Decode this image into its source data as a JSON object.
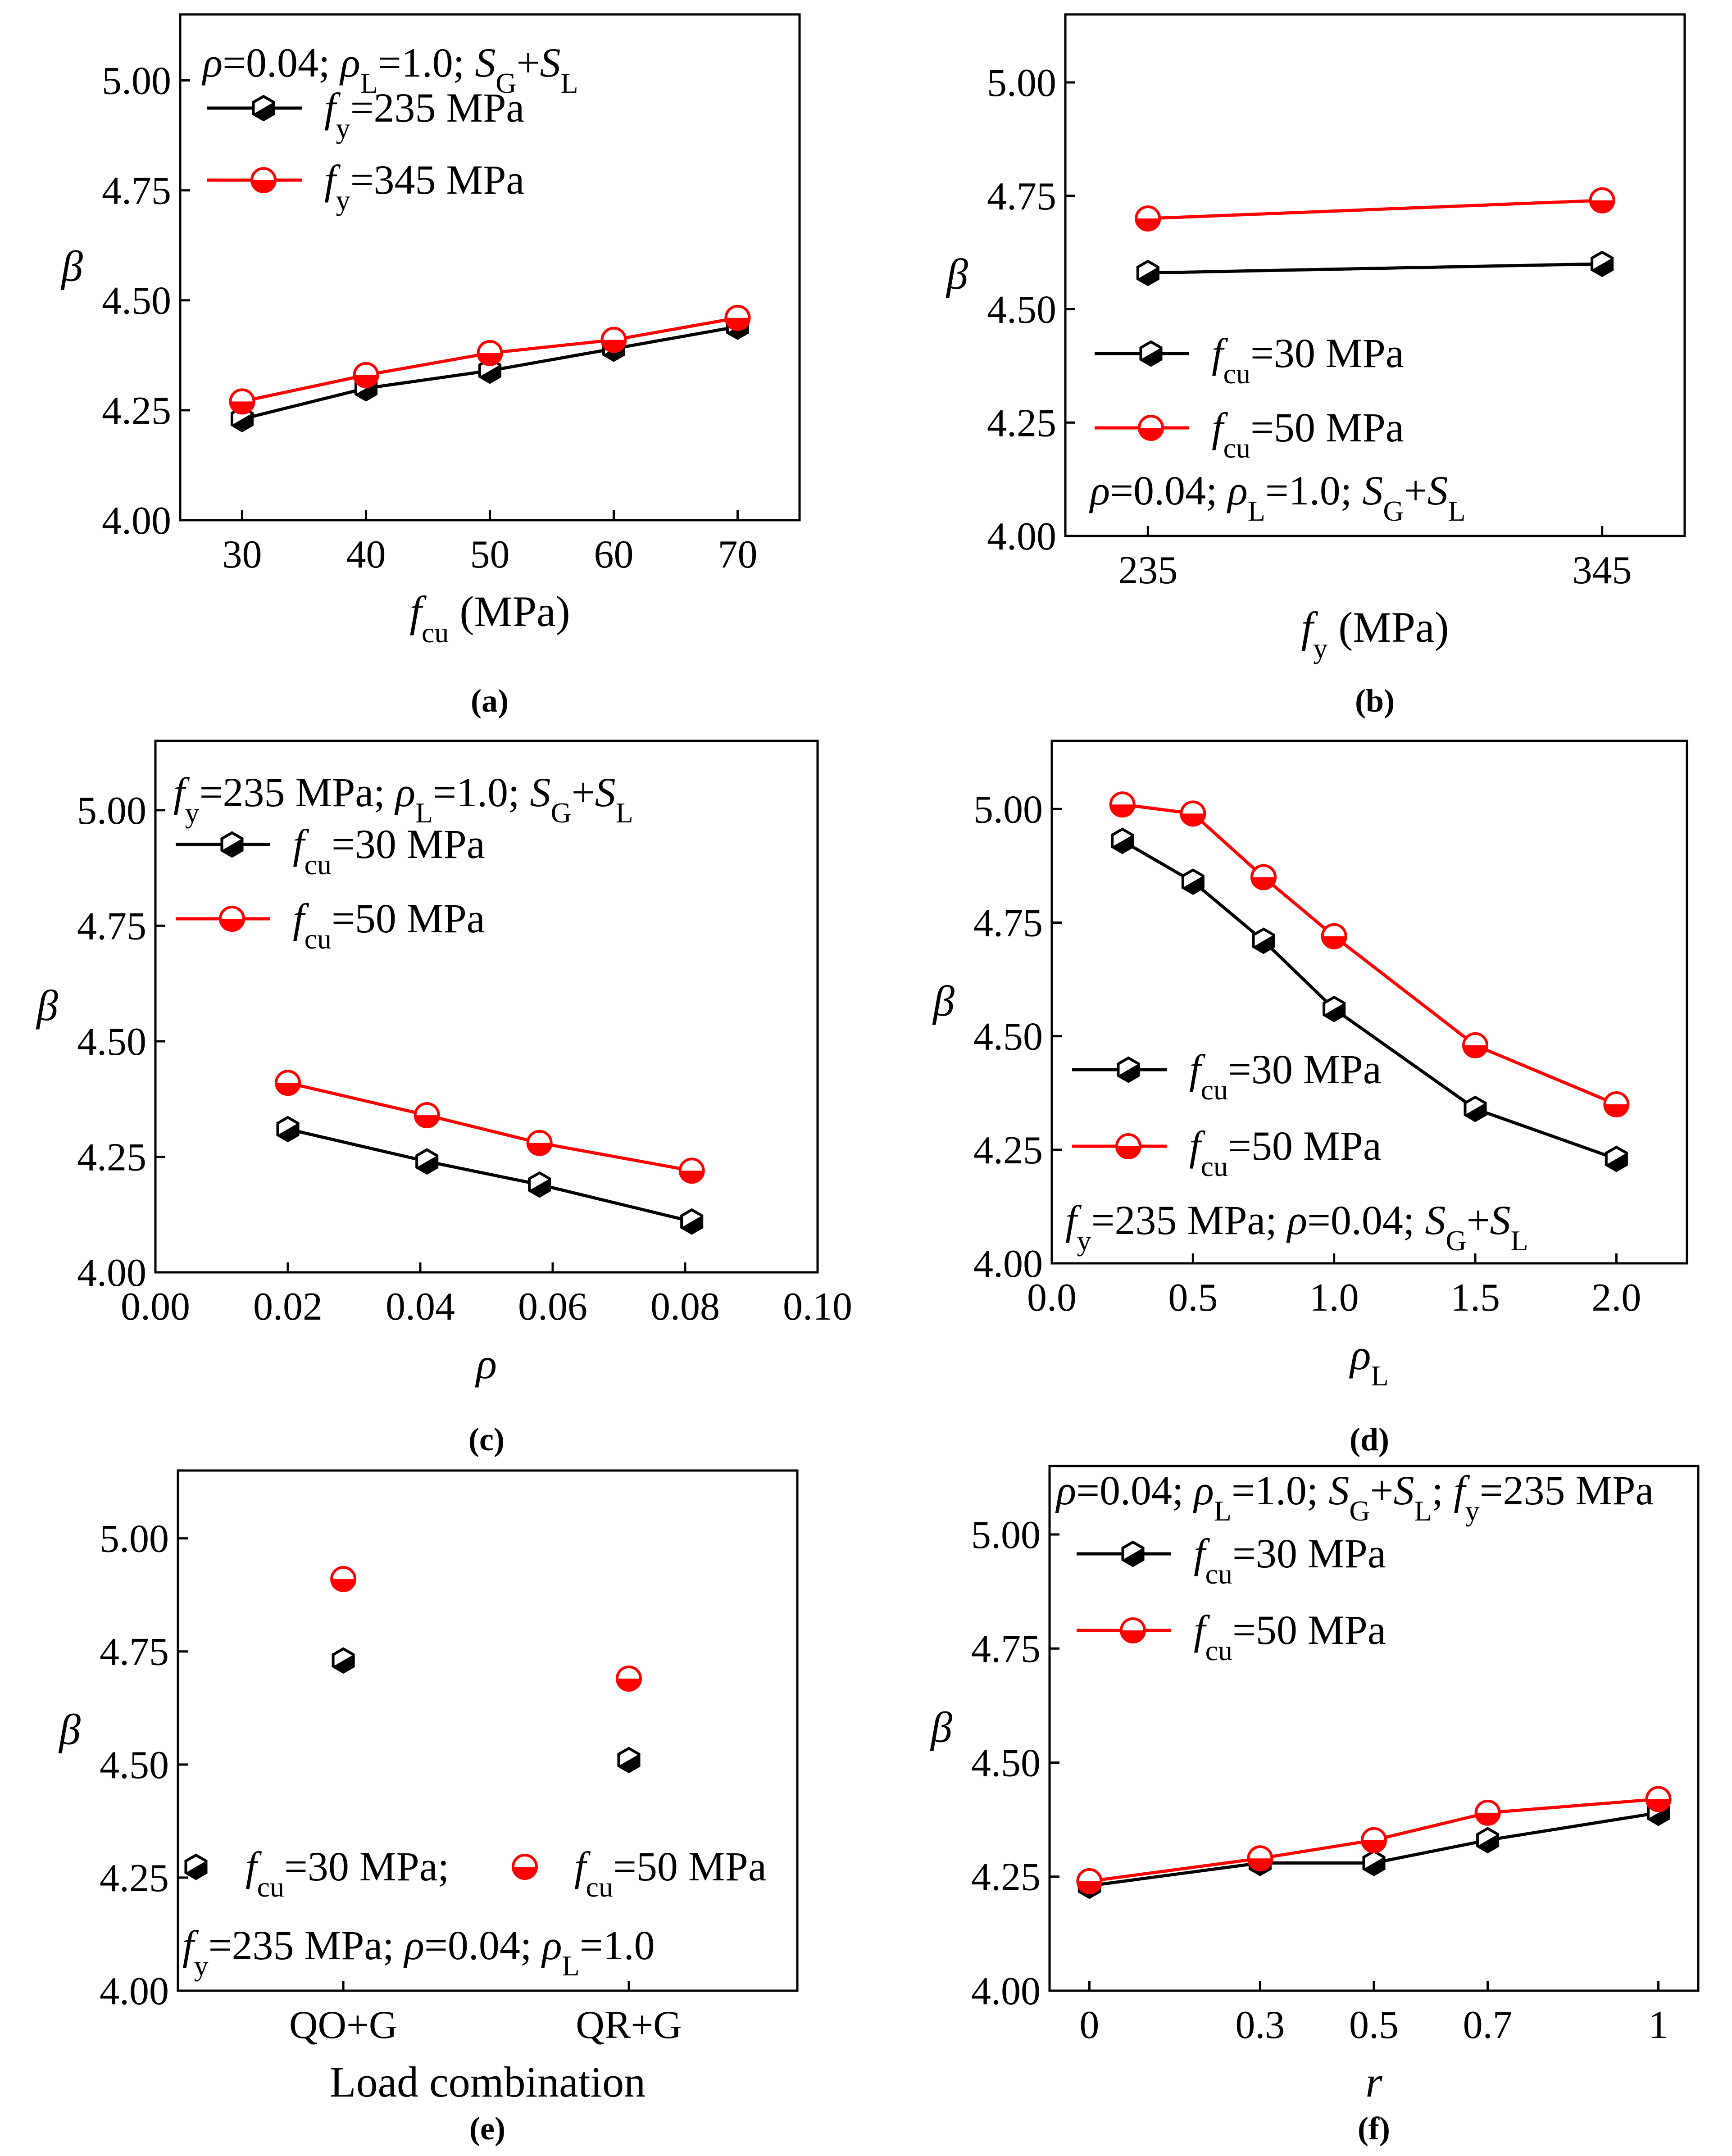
{
  "colors": {
    "series_black": "#000000",
    "series_red": "#ff0000",
    "axis": "#000000"
  },
  "chart_data": [
    {
      "id": "a",
      "type": "line",
      "caption": "(a)",
      "conditions": [
        "ρ",
        "=0.04; ",
        "ρ",
        "L",
        "=1.0; ",
        "S",
        "G",
        "+",
        "S",
        "L"
      ],
      "x": [
        30,
        40,
        50,
        60,
        70
      ],
      "xlim": [
        25,
        75
      ],
      "ylim": [
        4.0,
        5.15
      ],
      "xticks": [
        "30",
        "40",
        "50",
        "60",
        "70"
      ],
      "yticks": [
        "4.00",
        "4.25",
        "4.50",
        "4.75",
        "5.00"
      ],
      "xlabel": [
        "f",
        "cu",
        " (MPa)"
      ],
      "ylabel": "β",
      "series": [
        {
          "name": [
            "f",
            "y",
            "=235 MPa"
          ],
          "color": "#000000",
          "marker": "hex",
          "values": [
            4.23,
            4.3,
            4.34,
            4.39,
            4.44
          ]
        },
        {
          "name": [
            "f",
            "y",
            "=345 MPa"
          ],
          "color": "#ff0000",
          "marker": "circle",
          "values": [
            4.27,
            4.33,
            4.38,
            4.41,
            4.46
          ]
        }
      ]
    },
    {
      "id": "b",
      "type": "line",
      "caption": "(b)",
      "conditions": [
        "ρ",
        "=0.04; ",
        "ρ",
        "L",
        "=1.0; ",
        "S",
        "G",
        "+",
        "S",
        "L"
      ],
      "x": [
        235,
        345
      ],
      "xlim": [
        215,
        365
      ],
      "ylim": [
        4.0,
        5.15
      ],
      "xticks": [
        "235",
        "345"
      ],
      "yticks": [
        "4.00",
        "4.25",
        "4.50",
        "4.75",
        "5.00"
      ],
      "xlabel": [
        "f",
        "y",
        " (MPa)"
      ],
      "ylabel": "β",
      "series": [
        {
          "name": [
            "f",
            "cu",
            "=30 MPa"
          ],
          "color": "#000000",
          "marker": "hex",
          "values": [
            4.58,
            4.6
          ]
        },
        {
          "name": [
            "f",
            "cu",
            "=50 MPa"
          ],
          "color": "#ff0000",
          "marker": "circle",
          "values": [
            4.7,
            4.74
          ]
        }
      ]
    },
    {
      "id": "c",
      "type": "line",
      "caption": "(c)",
      "conditions": [
        "f",
        "y",
        "=235 MPa; ",
        "ρ",
        "L",
        "=1.0; ",
        "S",
        "G",
        "+",
        "S",
        "L"
      ],
      "x": [
        0.02,
        0.041,
        0.058,
        0.081
      ],
      "xlim": [
        0.0,
        0.1
      ],
      "ylim": [
        4.0,
        5.15
      ],
      "xticks": [
        "0.00",
        "0.02",
        "0.04",
        "0.06",
        "0.08",
        "0.10"
      ],
      "yticks": [
        "4.00",
        "4.25",
        "4.50",
        "4.75",
        "5.00"
      ],
      "xlabel": [
        "ρ",
        "",
        ""
      ],
      "ylabel": "β",
      "series": [
        {
          "name": [
            "f",
            "cu",
            "=30 MPa"
          ],
          "color": "#000000",
          "marker": "hex",
          "values": [
            4.31,
            4.24,
            4.19,
            4.11
          ]
        },
        {
          "name": [
            "f",
            "cu",
            "=50 MPa"
          ],
          "color": "#ff0000",
          "marker": "circle",
          "values": [
            4.41,
            4.34,
            4.28,
            4.22
          ]
        }
      ]
    },
    {
      "id": "d",
      "type": "line",
      "caption": "(d)",
      "conditions": [
        "f",
        "y",
        "=235 MPa; ",
        "ρ",
        "=0.04; ",
        "S",
        "G",
        "+",
        "S",
        "L"
      ],
      "x": [
        0.25,
        0.5,
        0.75,
        1.0,
        1.5,
        2.0
      ],
      "xlim": [
        0.0,
        2.25
      ],
      "ylim": [
        4.0,
        5.15
      ],
      "xticks": [
        "0.0",
        "0.5",
        "1.0",
        "1.5",
        "2.0"
      ],
      "yticks": [
        "4.00",
        "4.25",
        "4.50",
        "4.75",
        "5.00"
      ],
      "xlabel": [
        "ρ",
        "L",
        ""
      ],
      "ylabel": "β",
      "series": [
        {
          "name": [
            "f",
            "cu",
            "=30 MPa"
          ],
          "color": "#000000",
          "marker": "hex",
          "values": [
            4.93,
            4.84,
            4.71,
            4.56,
            4.34,
            4.23
          ]
        },
        {
          "name": [
            "f",
            "cu",
            "=50 MPa"
          ],
          "color": "#ff0000",
          "marker": "circle",
          "values": [
            5.01,
            4.99,
            4.85,
            4.72,
            4.48,
            4.35
          ]
        }
      ]
    },
    {
      "id": "e",
      "type": "scatter",
      "caption": "(e)",
      "conditions": [
        "f",
        "y",
        "=235 MPa; ",
        "ρ",
        "=0.04; ",
        "ρ",
        "L",
        "=1.0"
      ],
      "categories": [
        "QO+G",
        "QR+G"
      ],
      "ylim": [
        4.0,
        5.15
      ],
      "yticks": [
        "4.00",
        "4.25",
        "4.50",
        "4.75",
        "5.00"
      ],
      "xlabel": [
        "Load combination",
        "",
        ""
      ],
      "ylabel": "β",
      "series": [
        {
          "name": [
            "f",
            "cu",
            "=30 MPa;"
          ],
          "color": "#000000",
          "marker": "hex",
          "values": [
            4.73,
            4.51
          ]
        },
        {
          "name": [
            "f",
            "cu",
            "=50 MPa"
          ],
          "color": "#ff0000",
          "marker": "circle",
          "values": [
            4.91,
            4.69
          ]
        }
      ]
    },
    {
      "id": "f",
      "type": "line",
      "caption": "(f)",
      "conditions": [
        "ρ",
        "=0.04; ",
        "ρ",
        "L",
        "=1.0; ",
        "S",
        "G",
        "+",
        "S",
        "L",
        "; ",
        "f",
        "y",
        "=235 MPa"
      ],
      "x": [
        0,
        0.3,
        0.5,
        0.7,
        1.0
      ],
      "xlim": [
        -0.07,
        1.07
      ],
      "ylim": [
        4.0,
        5.15
      ],
      "xticks": [
        "0",
        "0.3",
        "0.5",
        "0.7",
        "1"
      ],
      "yticks": [
        "4.00",
        "4.25",
        "4.50",
        "4.75",
        "5.00"
      ],
      "xlabel": [
        "r",
        "",
        ""
      ],
      "ylabel": "β",
      "series": [
        {
          "name": [
            "f",
            "cu",
            "=30 MPa"
          ],
          "color": "#000000",
          "marker": "hex",
          "values": [
            4.23,
            4.28,
            4.28,
            4.33,
            4.39
          ]
        },
        {
          "name": [
            "f",
            "cu",
            "=50 MPa"
          ],
          "color": "#ff0000",
          "marker": "circle",
          "values": [
            4.24,
            4.29,
            4.33,
            4.39,
            4.42
          ]
        }
      ]
    }
  ]
}
